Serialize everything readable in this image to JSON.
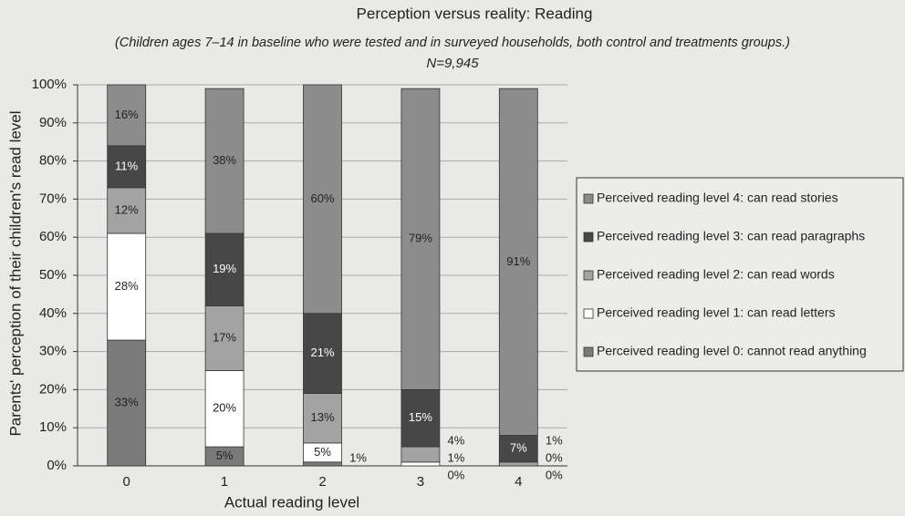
{
  "chart_data": {
    "type": "stacked_bar",
    "title": "Perception versus reality: Reading",
    "subtitle": "(Children ages 7–14 in baseline who were tested and in surveyed households, both control and treatments groups.)",
    "note": "N=9,945",
    "xlabel": "Actual reading level",
    "ylabel": "Parents' perception of their children's read level",
    "categories": [
      "0",
      "1",
      "2",
      "3",
      "4"
    ],
    "ylim": [
      0,
      100
    ],
    "yticks": [
      {
        "value": 0,
        "label": "0%"
      },
      {
        "value": 10,
        "label": "10%"
      },
      {
        "value": 20,
        "label": "20%"
      },
      {
        "value": 30,
        "label": "30%"
      },
      {
        "value": 40,
        "label": "40%"
      },
      {
        "value": 50,
        "label": "50%"
      },
      {
        "value": 60,
        "label": "60%"
      },
      {
        "value": 70,
        "label": "70%"
      },
      {
        "value": 80,
        "label": "80%"
      },
      {
        "value": 90,
        "label": "90%"
      },
      {
        "value": 100,
        "label": "100%"
      }
    ],
    "grid": true,
    "legend": "right",
    "series": [
      {
        "name": "Perceived reading level 0: cannot read anything",
        "color": "#7a7a7a",
        "values": [
          33,
          5,
          1,
          0,
          0
        ],
        "value_labels": [
          "33%",
          "5%",
          "1%",
          "0%",
          "0%"
        ]
      },
      {
        "name": "Perceived reading level 1: can read letters",
        "color": "#ffffff",
        "values": [
          28,
          20,
          5,
          1,
          0
        ],
        "value_labels": [
          "28%",
          "20%",
          "5%",
          "1%",
          "0%"
        ]
      },
      {
        "name": "Perceived reading level 2: can read words",
        "color": "#a3a3a3",
        "values": [
          12,
          17,
          13,
          4,
          1
        ],
        "value_labels": [
          "12%",
          "17%",
          "13%",
          "4%",
          "1%"
        ]
      },
      {
        "name": "Perceived reading level 3: can read paragraphs",
        "color": "#474747",
        "values": [
          11,
          19,
          21,
          15,
          7
        ],
        "value_labels": [
          "11%",
          "19%",
          "21%",
          "15%",
          "7%"
        ]
      },
      {
        "name": "Perceived reading level 4: can read stories",
        "color": "#8c8c8c",
        "values": [
          16,
          38,
          60,
          79,
          91
        ],
        "value_labels": [
          "16%",
          "38%",
          "60%",
          "79%",
          "91%"
        ]
      }
    ]
  }
}
